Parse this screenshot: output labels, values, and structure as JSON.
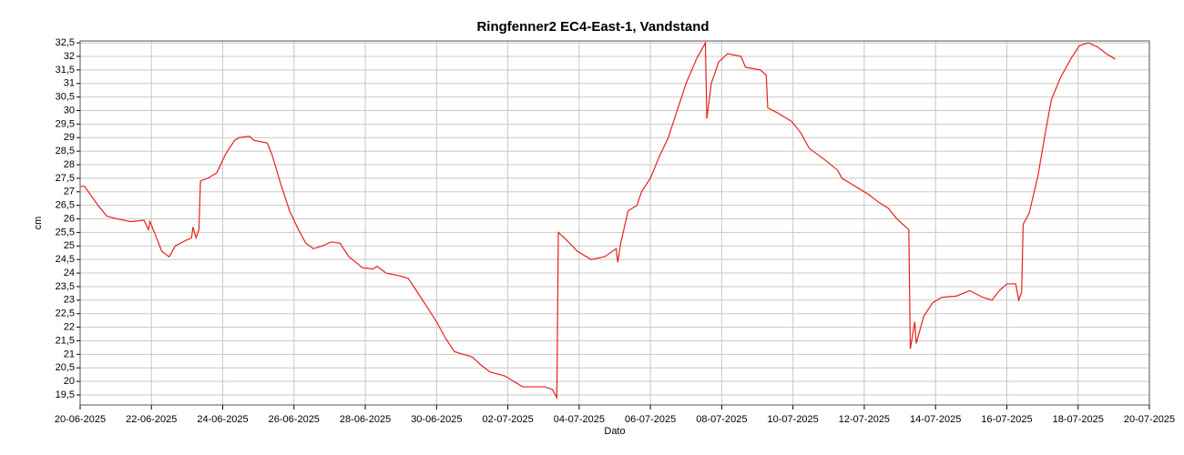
{
  "chart_data": {
    "type": "line",
    "title": "Ringfenner2 EC4-East-1, Vandstand",
    "x_label": "Dato",
    "y_label": "cm",
    "grid": true,
    "xlim": [
      "2025-06-20",
      "2025-07-20"
    ],
    "xticks": [
      {
        "value": "2025-06-20",
        "label": "20-06-2025"
      },
      {
        "value": "2025-06-22",
        "label": "22-06-2025"
      },
      {
        "value": "2025-06-24",
        "label": "24-06-2025"
      },
      {
        "value": "2025-06-26",
        "label": "26-06-2025"
      },
      {
        "value": "2025-06-28",
        "label": "28-06-2025"
      },
      {
        "value": "2025-06-30",
        "label": "30-06-2025"
      },
      {
        "value": "2025-07-02",
        "label": "02-07-2025"
      },
      {
        "value": "2025-07-04",
        "label": "04-07-2025"
      },
      {
        "value": "2025-07-06",
        "label": "06-07-2025"
      },
      {
        "value": "2025-07-08",
        "label": "08-07-2025"
      },
      {
        "value": "2025-07-10",
        "label": "10-07-2025"
      },
      {
        "value": "2025-07-12",
        "label": "12-07-2025"
      },
      {
        "value": "2025-07-14",
        "label": "14-07-2025"
      },
      {
        "value": "2025-07-16",
        "label": "16-07-2025"
      },
      {
        "value": "2025-07-18",
        "label": "18-07-2025"
      },
      {
        "value": "2025-07-20",
        "label": "20-07-2025"
      }
    ],
    "ylim": [
      19.13,
      32.57
    ],
    "yticks": [
      {
        "value": 19.5,
        "label": "19,5"
      },
      20,
      {
        "value": 20.5,
        "label": "20,5"
      },
      21,
      {
        "value": 21.5,
        "label": "21,5"
      },
      22,
      {
        "value": 22.5,
        "label": "22,5"
      },
      23,
      {
        "value": 23.5,
        "label": "23,5"
      },
      24,
      {
        "value": 24.5,
        "label": "24,5"
      },
      25,
      {
        "value": 25.5,
        "label": "25,5"
      },
      26,
      {
        "value": 26.5,
        "label": "26,5"
      },
      27,
      {
        "value": 27.5,
        "label": "27,5"
      },
      28,
      {
        "value": 28.5,
        "label": "28,5"
      },
      29,
      {
        "value": 29.5,
        "label": "29,5"
      },
      30,
      {
        "value": 30.5,
        "label": "30,5"
      },
      31,
      {
        "value": 31.5,
        "label": "31,5"
      },
      32,
      {
        "value": 32.5,
        "label": "32,5"
      }
    ],
    "x": [
      "2025-06-20T00:00",
      "2025-06-20T03:00",
      "2025-06-20T12:00",
      "2025-06-20T18:00",
      "2025-06-21T01:00",
      "2025-06-21T10:00",
      "2025-06-21T19:00",
      "2025-06-21T22:00",
      "2025-06-21T23:00",
      "2025-06-22T02:00",
      "2025-06-22T07:00",
      "2025-06-22T12:00",
      "2025-06-22T16:00",
      "2025-06-22T23:00",
      "2025-06-23T03:00",
      "2025-06-23T04:00",
      "2025-06-23T06:00",
      "2025-06-23T08:00",
      "2025-06-23T09:00",
      "2025-06-23T14:00",
      "2025-06-23T20:00",
      "2025-06-24T02:00",
      "2025-06-24T08:00",
      "2025-06-24T11:00",
      "2025-06-24T18:00",
      "2025-06-24T21:00",
      "2025-06-25T06:00",
      "2025-06-25T09:00",
      "2025-06-25T15:00",
      "2025-06-25T21:00",
      "2025-06-26T03:00",
      "2025-06-26T08:00",
      "2025-06-26T13:00",
      "2025-06-26T19:00",
      "2025-06-27T01:00",
      "2025-06-27T07:00",
      "2025-06-27T13:00",
      "2025-06-27T22:00",
      "2025-06-28T05:00",
      "2025-06-28T08:00",
      "2025-06-28T14:00",
      "2025-06-28T23:00",
      "2025-06-29T05:00",
      "2025-06-29T11:00",
      "2025-06-29T17:00",
      "2025-06-30T00:00",
      "2025-06-30T06:00",
      "2025-06-30T12:00",
      "2025-07-01T00:00",
      "2025-07-01T06:00",
      "2025-07-01T12:00",
      "2025-07-01T22:00",
      "2025-07-02T04:00",
      "2025-07-02T10:00",
      "2025-07-03T01:00",
      "2025-07-03T06:00",
      "2025-07-03T09:00",
      "2025-07-03T10:00",
      "2025-07-03T14:00",
      "2025-07-03T23:00",
      "2025-07-04T08:00",
      "2025-07-04T17:00",
      "2025-07-05T01:00",
      "2025-07-05T02:00",
      "2025-07-05T04:00",
      "2025-07-05T09:00",
      "2025-07-05T15:00",
      "2025-07-05T18:00",
      "2025-07-06T00:00",
      "2025-07-06T06:00",
      "2025-07-06T12:00",
      "2025-07-06T18:00",
      "2025-07-07T00:00",
      "2025-07-07T07:00",
      "2025-07-07T12:00",
      "2025-07-07T13:00",
      "2025-07-07T14:00",
      "2025-07-07T17:00",
      "2025-07-07T22:00",
      "2025-07-08T04:00",
      "2025-07-08T13:00",
      "2025-07-08T16:00",
      "2025-07-09T02:00",
      "2025-07-09T06:00",
      "2025-07-09T07:00",
      "2025-07-09T14:00",
      "2025-07-09T23:00",
      "2025-07-10T05:00",
      "2025-07-10T11:00",
      "2025-07-10T21:00",
      "2025-07-11T06:00",
      "2025-07-11T09:00",
      "2025-07-11T15:00",
      "2025-07-11T21:00",
      "2025-07-12T03:00",
      "2025-07-12T10:00",
      "2025-07-12T16:00",
      "2025-07-12T22:00",
      "2025-07-13T06:00",
      "2025-07-13T07:00",
      "2025-07-13T10:00",
      "2025-07-13T11:00",
      "2025-07-13T16:00",
      "2025-07-13T22:00",
      "2025-07-14T04:00",
      "2025-07-14T14:00",
      "2025-07-14T23:00",
      "2025-07-15T08:00",
      "2025-07-15T14:00",
      "2025-07-15T19:00",
      "2025-07-16T00:00",
      "2025-07-16T06:00",
      "2025-07-16T08:00",
      "2025-07-16T10:00",
      "2025-07-16T11:00",
      "2025-07-16T15:00",
      "2025-07-16T21:00",
      "2025-07-17T02:00",
      "2025-07-17T06:00",
      "2025-07-17T12:00",
      "2025-07-17T19:00",
      "2025-07-18T01:00",
      "2025-07-18T07:00",
      "2025-07-18T13:00",
      "2025-07-18T19:00",
      "2025-07-19T01:00"
    ],
    "series": [
      {
        "name": "Vandstand",
        "color": "#e8201c",
        "values": [
          27.2,
          27.2,
          26.5,
          26.1,
          26.0,
          25.9,
          25.95,
          25.6,
          25.9,
          25.5,
          24.8,
          24.6,
          25.0,
          25.2,
          25.3,
          25.7,
          25.3,
          25.6,
          27.4,
          27.5,
          27.7,
          28.4,
          28.9,
          29.0,
          29.05,
          28.9,
          28.8,
          28.4,
          27.3,
          26.3,
          25.6,
          25.1,
          24.9,
          25.0,
          25.15,
          25.1,
          24.6,
          24.2,
          24.15,
          24.25,
          24.0,
          23.9,
          23.8,
          23.3,
          22.8,
          22.2,
          21.6,
          21.1,
          20.9,
          20.6,
          20.35,
          20.2,
          20.0,
          19.8,
          19.8,
          19.7,
          19.4,
          25.5,
          25.3,
          24.8,
          24.5,
          24.6,
          24.9,
          24.4,
          25.1,
          26.3,
          26.5,
          27.0,
          27.5,
          28.3,
          29.0,
          30.0,
          31.0,
          31.9,
          32.4,
          32.5,
          29.7,
          31.0,
          31.8,
          32.1,
          32.0,
          31.6,
          31.5,
          31.3,
          30.1,
          29.9,
          29.6,
          29.2,
          28.6,
          28.2,
          27.8,
          27.5,
          27.3,
          27.1,
          26.9,
          26.6,
          26.4,
          26.0,
          25.6,
          21.2,
          22.2,
          21.4,
          22.4,
          22.9,
          23.1,
          23.15,
          23.35,
          23.1,
          23.0,
          23.35,
          23.6,
          23.6,
          23.0,
          23.3,
          25.8,
          26.2,
          27.6,
          29.2,
          30.4,
          31.2,
          31.9,
          32.4,
          32.5,
          32.35,
          32.1,
          31.9
        ]
      }
    ]
  }
}
